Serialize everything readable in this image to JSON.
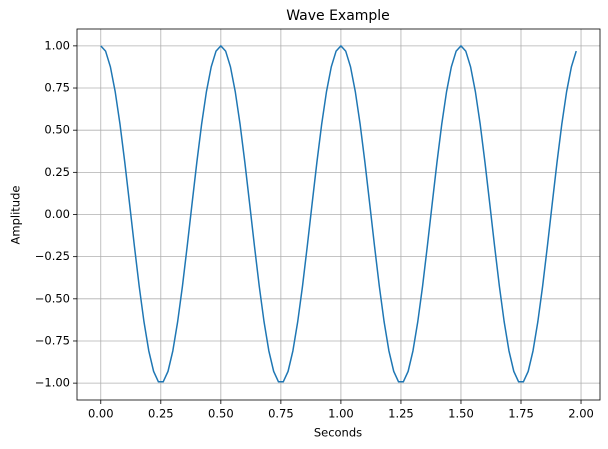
{
  "chart_data": {
    "type": "line",
    "title": "Wave Example",
    "xlabel": "Seconds",
    "ylabel": "Amplitude",
    "x": [
      0,
      0.02,
      0.04,
      0.06,
      0.08,
      0.1,
      0.12,
      0.14,
      0.16,
      0.18,
      0.2,
      0.22,
      0.24,
      0.26,
      0.28,
      0.3,
      0.32,
      0.34,
      0.36,
      0.38,
      0.4,
      0.42,
      0.44,
      0.46,
      0.48,
      0.5,
      0.52,
      0.54,
      0.56,
      0.58,
      0.6,
      0.62,
      0.64,
      0.66,
      0.68,
      0.7,
      0.72,
      0.74,
      0.76,
      0.78,
      0.8,
      0.82,
      0.84,
      0.86,
      0.88,
      0.9,
      0.92,
      0.94,
      0.96,
      0.98,
      1,
      1.02,
      1.04,
      1.06,
      1.08,
      1.1,
      1.12,
      1.14,
      1.16,
      1.18,
      1.2,
      1.22,
      1.24,
      1.26,
      1.28,
      1.3,
      1.32,
      1.34,
      1.36,
      1.38,
      1.4,
      1.42,
      1.44,
      1.46,
      1.48,
      1.5,
      1.52,
      1.54,
      1.56,
      1.58,
      1.6,
      1.62,
      1.64,
      1.66,
      1.68,
      1.7,
      1.72,
      1.74,
      1.76,
      1.78,
      1.8,
      1.82,
      1.84,
      1.86,
      1.88,
      1.9,
      1.92,
      1.94,
      1.96,
      1.98
    ],
    "series": [
      {
        "color": "#1f77b4",
        "values": [
          1,
          0.969,
          0.876,
          0.729,
          0.536,
          0.309,
          0.063,
          -0.187,
          -0.426,
          -0.637,
          -0.809,
          -0.93,
          -0.992,
          -0.992,
          -0.93,
          -0.809,
          -0.637,
          -0.426,
          -0.187,
          0.063,
          0.309,
          0.536,
          0.729,
          0.876,
          0.969,
          1,
          0.969,
          0.876,
          0.729,
          0.536,
          0.309,
          0.063,
          -0.187,
          -0.426,
          -0.637,
          -0.809,
          -0.93,
          -0.992,
          -0.992,
          -0.93,
          -0.809,
          -0.637,
          -0.426,
          -0.187,
          0.063,
          0.309,
          0.536,
          0.729,
          0.876,
          0.969,
          1,
          0.969,
          0.876,
          0.729,
          0.536,
          0.309,
          0.063,
          -0.187,
          -0.426,
          -0.637,
          -0.809,
          -0.93,
          -0.992,
          -0.992,
          -0.93,
          -0.809,
          -0.637,
          -0.426,
          -0.187,
          0.063,
          0.309,
          0.536,
          0.729,
          0.876,
          0.969,
          1,
          0.969,
          0.876,
          0.729,
          0.536,
          0.309,
          0.063,
          -0.187,
          -0.426,
          -0.637,
          -0.809,
          -0.93,
          -0.992,
          -0.992,
          -0.93,
          -0.809,
          -0.637,
          -0.426,
          -0.187,
          0.063,
          0.309,
          0.536,
          0.729,
          0.876,
          0.969
        ]
      }
    ],
    "xlim": [
      -0.099,
      2.079
    ],
    "ylim": [
      -1.1,
      1.1
    ],
    "xticks": [
      {
        "value": 0,
        "label": "0.00"
      },
      {
        "value": 0.25,
        "label": "0.25"
      },
      {
        "value": 0.5,
        "label": "0.50"
      },
      {
        "value": 0.75,
        "label": "0.75"
      },
      {
        "value": 1,
        "label": "1.00"
      },
      {
        "value": 1.25,
        "label": "1.25"
      },
      {
        "value": 1.5,
        "label": "1.50"
      },
      {
        "value": 1.75,
        "label": "1.75"
      },
      {
        "value": 2,
        "label": "2.00"
      }
    ],
    "yticks": [
      {
        "value": -1,
        "label": "−1.00"
      },
      {
        "value": -0.75,
        "label": "−0.75"
      },
      {
        "value": -0.5,
        "label": "−0.50"
      },
      {
        "value": -0.25,
        "label": "−0.25"
      },
      {
        "value": 0,
        "label": "0.00"
      },
      {
        "value": 0.25,
        "label": "0.25"
      },
      {
        "value": 0.5,
        "label": "0.50"
      },
      {
        "value": 0.75,
        "label": "0.75"
      },
      {
        "value": 1,
        "label": "1.00"
      }
    ],
    "grid": true
  }
}
